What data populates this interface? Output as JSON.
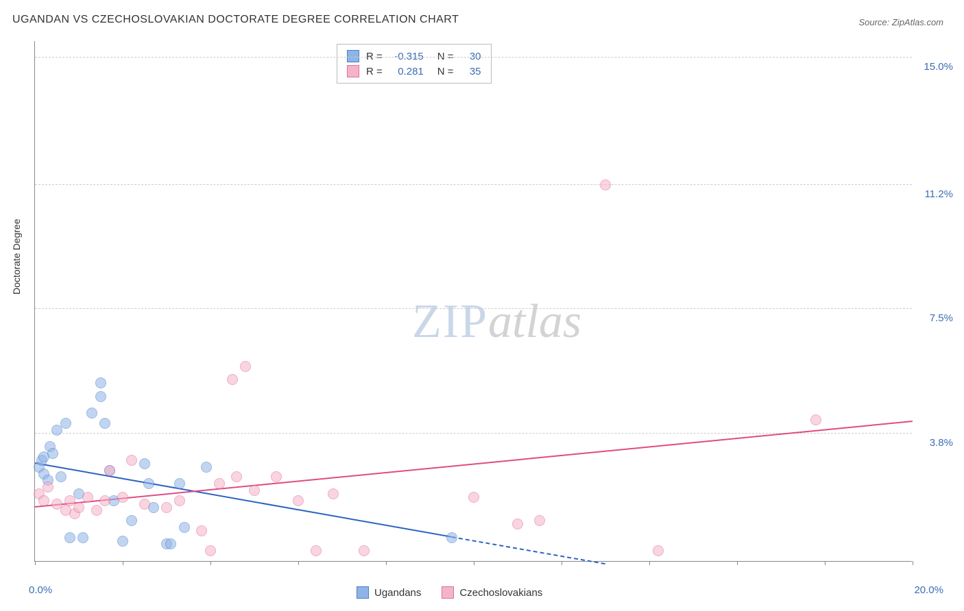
{
  "title": "UGANDAN VS CZECHOSLOVAKIAN DOCTORATE DEGREE CORRELATION CHART",
  "source": "Source: ZipAtlas.com",
  "y_axis_title": "Doctorate Degree",
  "watermark": {
    "part1": "ZIP",
    "part2": "atlas"
  },
  "chart": {
    "type": "scatter",
    "xlim": [
      0,
      20
    ],
    "ylim": [
      0,
      15.5
    ],
    "x_ticks": [
      0,
      2,
      4,
      6,
      8,
      10,
      12,
      14,
      16,
      18,
      20
    ],
    "x_tick_labels": {
      "0": "0.0%",
      "20": "20.0%"
    },
    "y_grid": [
      3.8,
      7.5,
      11.2,
      15.0
    ],
    "y_tick_labels": [
      "3.8%",
      "7.5%",
      "11.2%",
      "15.0%"
    ],
    "background_color": "#ffffff",
    "grid_color": "#cccccc",
    "axis_color": "#888888",
    "label_color": "#3b6db5",
    "marker_radius": 8,
    "marker_opacity": 0.55,
    "series": [
      {
        "name": "Ugandans",
        "fill": "#8fb4e6",
        "stroke": "#4a7dc9",
        "r_value": "-0.315",
        "n_value": "30",
        "points": [
          [
            0.1,
            2.8
          ],
          [
            0.15,
            3.0
          ],
          [
            0.2,
            3.1
          ],
          [
            0.2,
            2.6
          ],
          [
            0.3,
            2.4
          ],
          [
            0.35,
            3.4
          ],
          [
            0.4,
            3.2
          ],
          [
            0.5,
            3.9
          ],
          [
            0.6,
            2.5
          ],
          [
            0.7,
            4.1
          ],
          [
            0.8,
            0.7
          ],
          [
            1.0,
            2.0
          ],
          [
            1.1,
            0.7
          ],
          [
            1.3,
            4.4
          ],
          [
            1.5,
            4.9
          ],
          [
            1.5,
            5.3
          ],
          [
            1.6,
            4.1
          ],
          [
            1.7,
            2.7
          ],
          [
            1.8,
            1.8
          ],
          [
            2.0,
            0.6
          ],
          [
            2.2,
            1.2
          ],
          [
            2.5,
            2.9
          ],
          [
            2.6,
            2.3
          ],
          [
            2.7,
            1.6
          ],
          [
            3.0,
            0.5
          ],
          [
            3.1,
            0.5
          ],
          [
            3.3,
            2.3
          ],
          [
            3.4,
            1.0
          ],
          [
            3.9,
            2.8
          ],
          [
            9.5,
            0.7
          ]
        ],
        "trend": {
          "x1": 0,
          "y1": 2.9,
          "x2": 9.5,
          "y2": 0.7,
          "dash_x2": 13.0,
          "dash_y2": -0.1,
          "color": "#2b63c1"
        }
      },
      {
        "name": "Czechoslovakians",
        "fill": "#f4b4c7",
        "stroke": "#e66b94",
        "r_value": "0.281",
        "n_value": "35",
        "points": [
          [
            0.1,
            2.0
          ],
          [
            0.2,
            1.8
          ],
          [
            0.3,
            2.2
          ],
          [
            0.5,
            1.7
          ],
          [
            0.7,
            1.5
          ],
          [
            0.8,
            1.8
          ],
          [
            0.9,
            1.4
          ],
          [
            1.0,
            1.6
          ],
          [
            1.2,
            1.9
          ],
          [
            1.4,
            1.5
          ],
          [
            1.6,
            1.8
          ],
          [
            1.7,
            2.7
          ],
          [
            2.0,
            1.9
          ],
          [
            2.2,
            3.0
          ],
          [
            2.5,
            1.7
          ],
          [
            3.0,
            1.6
          ],
          [
            3.3,
            1.8
          ],
          [
            3.8,
            0.9
          ],
          [
            4.0,
            0.3
          ],
          [
            4.2,
            2.3
          ],
          [
            4.5,
            5.4
          ],
          [
            4.6,
            2.5
          ],
          [
            4.8,
            5.8
          ],
          [
            5.0,
            2.1
          ],
          [
            5.5,
            2.5
          ],
          [
            6.0,
            1.8
          ],
          [
            6.4,
            0.3
          ],
          [
            6.8,
            2.0
          ],
          [
            7.5,
            0.3
          ],
          [
            10.0,
            1.9
          ],
          [
            11.0,
            1.1
          ],
          [
            11.5,
            1.2
          ],
          [
            13.0,
            11.2
          ],
          [
            14.2,
            0.3
          ],
          [
            17.8,
            4.2
          ]
        ],
        "trend": {
          "x1": 0,
          "y1": 1.6,
          "x2": 20,
          "y2": 4.15,
          "color": "#e04a84"
        }
      }
    ]
  },
  "stats_legend": {
    "r_label": "R =",
    "n_label": "N ="
  },
  "bottom_legend": {
    "items": [
      "Ugandans",
      "Czechoslovakians"
    ]
  }
}
